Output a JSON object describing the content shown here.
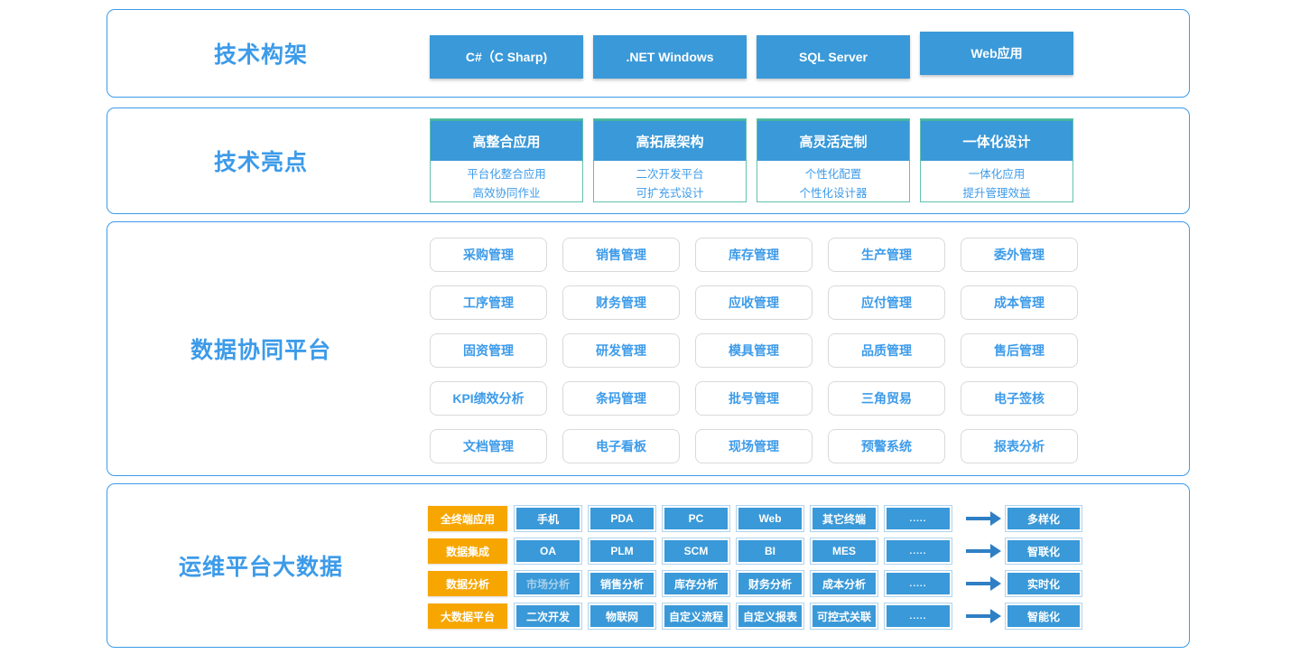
{
  "colors": {
    "primary_blue": "#3a99d8",
    "label_blue": "#3d9be9",
    "orange": "#f7a600",
    "teal_border": "#63c1ad",
    "arrow_blue": "#2f7fc4",
    "grid_border": "#d9d9d9"
  },
  "panels": {
    "tech_stack": {
      "label": "技术构架",
      "buttons": [
        "C#（C Sharp)",
        ".NET Windows",
        "SQL Server",
        "Web应用"
      ]
    },
    "highlights": {
      "label": "技术亮点",
      "cards": [
        {
          "title": "高整合应用",
          "lines": [
            "平台化整合应用",
            "高效协同作业"
          ]
        },
        {
          "title": "高拓展架构",
          "lines": [
            "二次开发平台",
            "可扩充式设计"
          ]
        },
        {
          "title": "高灵活定制",
          "lines": [
            "个性化配置",
            "个性化设计器"
          ]
        },
        {
          "title": "一体化设计",
          "lines": [
            "一体化应用",
            "提升管理效益"
          ]
        }
      ]
    },
    "platform": {
      "label": "数据协同平台",
      "modules": [
        "采购管理",
        "销售管理",
        "库存管理",
        "生产管理",
        "委外管理",
        "工序管理",
        "财务管理",
        "应收管理",
        "应付管理",
        "成本管理",
        "固资管理",
        "研发管理",
        "模具管理",
        "品质管理",
        "售后管理",
        "KPI绩效分析",
        "条码管理",
        "批号管理",
        "三角贸易",
        "电子签核",
        "文档管理",
        "电子看板",
        "现场管理",
        "预警系统",
        "报表分析"
      ]
    },
    "ops": {
      "label": "运维平台大数据",
      "muted_items": [
        "市场分析"
      ],
      "rows": [
        {
          "category": "全终端应用",
          "items": [
            "手机",
            "PDA",
            "PC",
            "Web",
            "其它终端",
            "....."
          ],
          "result": "多样化"
        },
        {
          "category": "数据集成",
          "items": [
            "OA",
            "PLM",
            "SCM",
            "BI",
            "MES",
            "....."
          ],
          "result": "智联化"
        },
        {
          "category": "数据分析",
          "items": [
            "市场分析",
            "销售分析",
            "库存分析",
            "财务分析",
            "成本分析",
            "....."
          ],
          "result": "实时化"
        },
        {
          "category": "大数据平台",
          "items": [
            "二次开发",
            "物联网",
            "自定义流程",
            "自定义报表",
            "可控式关联",
            "....."
          ],
          "result": "智能化"
        }
      ]
    }
  }
}
